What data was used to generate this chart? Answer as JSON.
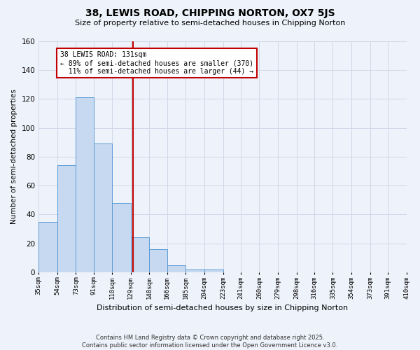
{
  "title": "38, LEWIS ROAD, CHIPPING NORTON, OX7 5JS",
  "subtitle": "Size of property relative to semi-detached houses in Chipping Norton",
  "xlabel": "Distribution of semi-detached houses by size in Chipping Norton",
  "ylabel": "Number of semi-detached properties",
  "bin_labels": [
    "35sqm",
    "54sqm",
    "73sqm",
    "91sqm",
    "110sqm",
    "129sqm",
    "148sqm",
    "166sqm",
    "185sqm",
    "204sqm",
    "223sqm",
    "241sqm",
    "260sqm",
    "279sqm",
    "298sqm",
    "316sqm",
    "335sqm",
    "354sqm",
    "373sqm",
    "391sqm",
    "410sqm"
  ],
  "bin_edges": [
    35,
    54,
    73,
    91,
    110,
    129,
    148,
    166,
    185,
    204,
    223,
    241,
    260,
    279,
    298,
    316,
    335,
    354,
    373,
    391,
    410
  ],
  "bar_heights": [
    35,
    74,
    121,
    89,
    48,
    24,
    16,
    5,
    2,
    2,
    0,
    0,
    0,
    0,
    0,
    0,
    0,
    0,
    0,
    0,
    1
  ],
  "bar_color": "#c6d9f0",
  "bar_edge_color": "#5b9bd5",
  "grid_color": "#d0d8e8",
  "background_color": "#eef2fa",
  "vline_x": 131,
  "vline_color": "#c00000",
  "annotation_line1": "38 LEWIS ROAD: 131sqm",
  "annotation_line2": "← 89% of semi-detached houses are smaller (370)",
  "annotation_line3": "  11% of semi-detached houses are larger (44) →",
  "annotation_box_color": "#ffffff",
  "annotation_box_edge": "#c00000",
  "footer": "Contains HM Land Registry data © Crown copyright and database right 2025.\nContains public sector information licensed under the Open Government Licence v3.0.",
  "ylim": [
    0,
    160
  ],
  "yticks": [
    0,
    20,
    40,
    60,
    80,
    100,
    120,
    140,
    160
  ]
}
